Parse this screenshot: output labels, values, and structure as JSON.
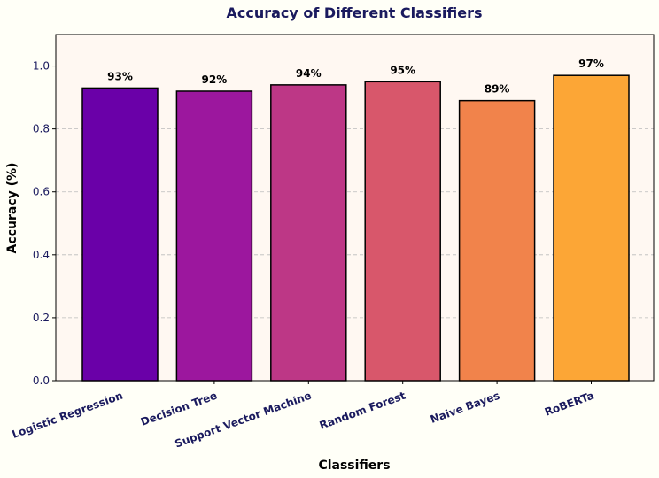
{
  "chart_data": {
    "type": "bar",
    "title": "Accuracy of Different Classifiers",
    "xlabel": "Classifiers",
    "ylabel": "Accuracy (%)",
    "ylim": [
      0,
      1.1
    ],
    "yticks": [
      "0.0",
      "0.2",
      "0.4",
      "0.6",
      "0.8",
      "1.0"
    ],
    "grid": "y-dashed",
    "categories": [
      "Logistic Regression",
      "Decision Tree",
      "Support Vector Machine",
      "Random Forest",
      "Naive Bayes",
      "RoBERTa"
    ],
    "values": [
      0.93,
      0.92,
      0.94,
      0.95,
      0.89,
      0.97
    ],
    "labels": [
      "93%",
      "92%",
      "94%",
      "95%",
      "89%",
      "97%"
    ],
    "colors": [
      "#6a00a8",
      "#9c179e",
      "#bd3786",
      "#d8576b",
      "#f1834b",
      "#fca636"
    ],
    "plot_background": "#fff8f2"
  }
}
